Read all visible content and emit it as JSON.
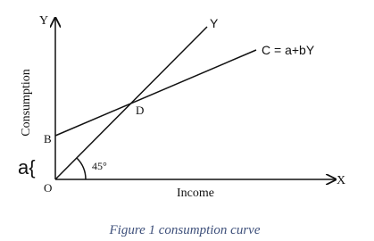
{
  "diagram": {
    "y_axis_label": "Y",
    "x_axis_label": "X",
    "line_45_label": "Y",
    "consumption_line_label": "C = a+bY",
    "intersection_label": "D",
    "intercept_label": "B",
    "intercept_brace_label": "a{",
    "origin_label": "O",
    "angle_label": "45°",
    "x_axis_title": "Income",
    "y_axis_title": "Consumption"
  },
  "caption": "Figure 1  consumption curve"
}
